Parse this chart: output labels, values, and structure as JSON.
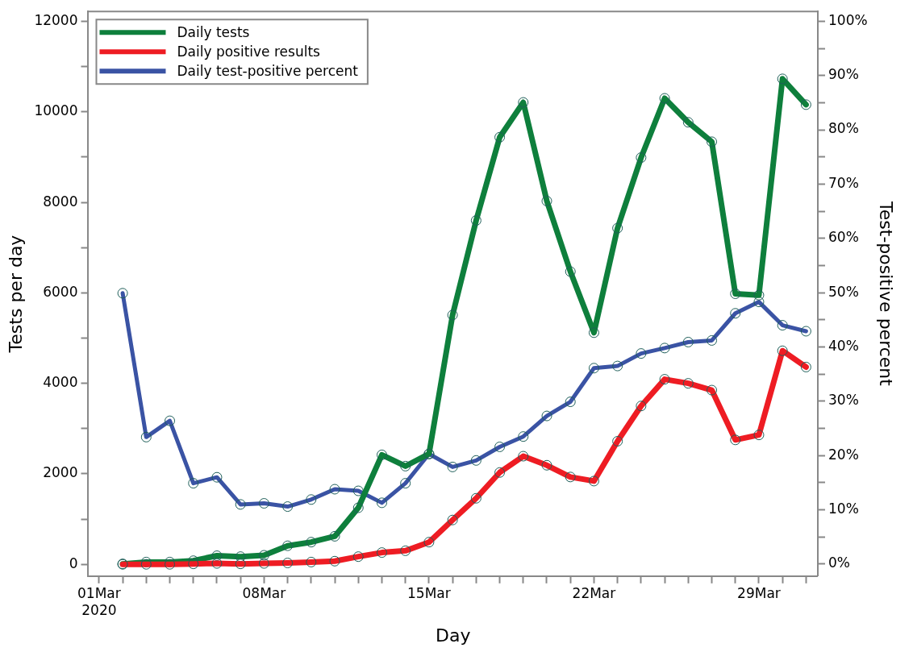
{
  "chart_data": {
    "type": "line",
    "xlabel": "Day",
    "ylabel": "Tests per day",
    "y2label": "Test-positive percent",
    "x": [
      "2020-03-02",
      "2020-03-03",
      "2020-03-04",
      "2020-03-05",
      "2020-03-06",
      "2020-03-07",
      "2020-03-08",
      "2020-03-09",
      "2020-03-10",
      "2020-03-11",
      "2020-03-12",
      "2020-03-13",
      "2020-03-14",
      "2020-03-15",
      "2020-03-16",
      "2020-03-17",
      "2020-03-18",
      "2020-03-19",
      "2020-03-20",
      "2020-03-21",
      "2020-03-22",
      "2020-03-23",
      "2020-03-24",
      "2020-03-25",
      "2020-03-26",
      "2020-03-27",
      "2020-03-28",
      "2020-03-29",
      "2020-03-30",
      "2020-03-31"
    ],
    "series": [
      {
        "name": "Daily tests",
        "color": "#0e7f3c",
        "values": [
          10,
          50,
          50,
          80,
          190,
          170,
          200,
          410,
          490,
          620,
          1250,
          2420,
          2170,
          2440,
          5510,
          7600,
          9440,
          10210,
          8030,
          6470,
          5120,
          7430,
          8990,
          10300,
          9770,
          9340,
          5980,
          5950,
          10730,
          10160
        ]
      },
      {
        "name": "Daily positive results",
        "color": "#ee1c23",
        "values": [
          0,
          0,
          0,
          10,
          20,
          10,
          20,
          30,
          50,
          70,
          170,
          260,
          300,
          490,
          980,
          1460,
          2030,
          2390,
          2190,
          1930,
          1840,
          2720,
          3500,
          4090,
          4000,
          3850,
          2750,
          2860,
          4720,
          4360
        ]
      },
      {
        "name": "Daily test-positive percent",
        "color": "#3a53a4",
        "axis": "y2",
        "values": [
          49.9,
          23.4,
          26.4,
          14.9,
          16.0,
          11.0,
          11.2,
          10.6,
          11.9,
          13.8,
          13.5,
          11.3,
          14.9,
          20.3,
          17.9,
          19.1,
          21.6,
          23.5,
          27.3,
          29.9,
          36.1,
          36.5,
          38.8,
          39.8,
          40.9,
          41.2,
          46.2,
          48.3,
          44.0,
          42.9
        ]
      }
    ],
    "xlim": [
      "2020-02-29T13:00",
      "2020-03-31T12:00"
    ],
    "xticks": [
      {
        "value": "2020-03-01",
        "label": "01Mar\n2020"
      },
      {
        "value": "2020-03-02",
        "label": null
      },
      {
        "value": "2020-03-03",
        "label": null
      },
      {
        "value": "2020-03-04",
        "label": null
      },
      {
        "value": "2020-03-05",
        "label": null
      },
      {
        "value": "2020-03-06",
        "label": null
      },
      {
        "value": "2020-03-07",
        "label": null
      },
      {
        "value": "2020-03-08",
        "label": "08Mar"
      },
      {
        "value": "2020-03-09",
        "label": null
      },
      {
        "value": "2020-03-10",
        "label": null
      },
      {
        "value": "2020-03-11",
        "label": null
      },
      {
        "value": "2020-03-12",
        "label": null
      },
      {
        "value": "2020-03-13",
        "label": null
      },
      {
        "value": "2020-03-14",
        "label": null
      },
      {
        "value": "2020-03-15",
        "label": "15Mar"
      },
      {
        "value": "2020-03-16",
        "label": null
      },
      {
        "value": "2020-03-17",
        "label": null
      },
      {
        "value": "2020-03-18",
        "label": null
      },
      {
        "value": "2020-03-19",
        "label": null
      },
      {
        "value": "2020-03-20",
        "label": null
      },
      {
        "value": "2020-03-21",
        "label": null
      },
      {
        "value": "2020-03-22",
        "label": "22Mar"
      },
      {
        "value": "2020-03-23",
        "label": null
      },
      {
        "value": "2020-03-24",
        "label": null
      },
      {
        "value": "2020-03-25",
        "label": null
      },
      {
        "value": "2020-03-26",
        "label": null
      },
      {
        "value": "2020-03-27",
        "label": null
      },
      {
        "value": "2020-03-28",
        "label": null
      },
      {
        "value": "2020-03-29",
        "label": "29Mar"
      },
      {
        "value": "2020-03-30",
        "label": null
      },
      {
        "value": "2020-03-31",
        "label": null
      }
    ],
    "ylim": [
      -260,
      12220
    ],
    "yticks": [
      0,
      {
        "value": 1000,
        "label": null
      },
      2000,
      {
        "value": 3000,
        "label": null
      },
      4000,
      {
        "value": 5000,
        "label": null
      },
      6000,
      {
        "value": 7000,
        "label": null
      },
      8000,
      {
        "value": 9000,
        "label": null
      },
      10000,
      {
        "value": 11000,
        "label": null
      },
      12000
    ],
    "y2lim": [
      -2.2,
      101.8
    ],
    "y2ticks": [
      {
        "value": 0,
        "label": "0%"
      },
      {
        "value": 5,
        "label": null
      },
      {
        "value": 10,
        "label": "10%"
      },
      {
        "value": 15,
        "label": null
      },
      {
        "value": 20,
        "label": "20%"
      },
      {
        "value": 25,
        "label": null
      },
      {
        "value": 30,
        "label": "30%"
      },
      {
        "value": 35,
        "label": null
      },
      {
        "value": 40,
        "label": "40%"
      },
      {
        "value": 45,
        "label": null
      },
      {
        "value": 50,
        "label": "50%"
      },
      {
        "value": 55,
        "label": null
      },
      {
        "value": 60,
        "label": "60%"
      },
      {
        "value": 65,
        "label": null
      },
      {
        "value": 70,
        "label": "70%"
      },
      {
        "value": 75,
        "label": null
      },
      {
        "value": 80,
        "label": "80%"
      },
      {
        "value": 85,
        "label": null
      },
      {
        "value": 90,
        "label": "90%"
      },
      {
        "value": 95,
        "label": null
      },
      {
        "value": 100,
        "label": "100%"
      }
    ],
    "legend": "top left",
    "marker": "circle",
    "line_style": "solid"
  }
}
